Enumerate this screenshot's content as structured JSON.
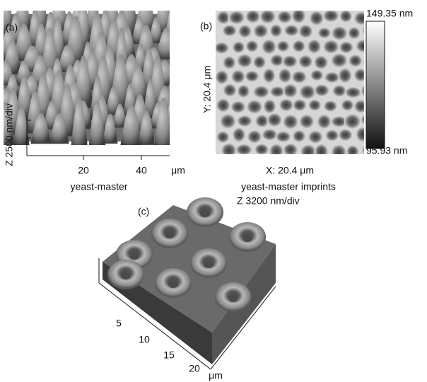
{
  "panels": [
    {
      "label": "(a)",
      "z_scale": "Z 2500 nm/div",
      "x_ticks": [
        "20",
        "40"
      ],
      "x_unit": "μm",
      "caption": "yeast-master"
    },
    {
      "label": "(b)",
      "y_size": "Y: 20.4 μm",
      "x_size": "X: 20.4 μm",
      "colorbar_max": "149.35 nm",
      "colorbar_min": "95.93 nm",
      "caption": "yeast-master imprints",
      "z_scale": "Z 3200 nm/div"
    },
    {
      "label": "(c)",
      "x_ticks": [
        "5",
        "10",
        "15",
        "20"
      ],
      "x_unit": "μm"
    }
  ]
}
